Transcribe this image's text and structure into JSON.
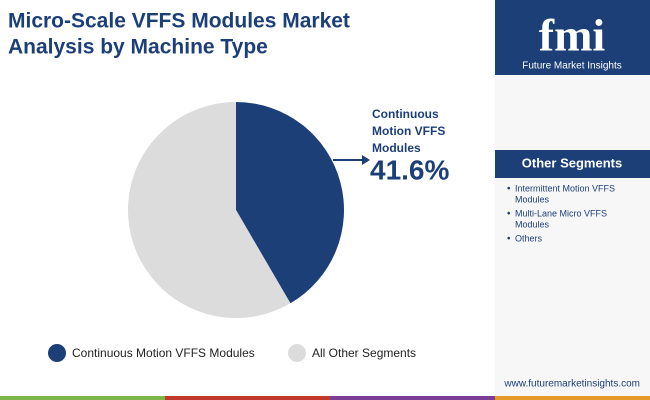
{
  "chart_data": {
    "type": "pie",
    "title": [
      "Micro-Scale VFFS Modules Market",
      "Analysis by Machine Type"
    ],
    "categories": [
      "Continuous Motion VFFS Modules",
      "All Other Segments"
    ],
    "values": [
      41.6,
      58.4
    ],
    "value_labels": [
      "41.6%",
      null
    ],
    "colors": [
      "#1c3f78",
      "#dcdcdc"
    ]
  },
  "brand": {
    "logo": "fmi",
    "name": "Future Market Insights",
    "website": "www.futuremarketinsights.com"
  },
  "sidebar": {
    "title": "Other Segments",
    "items": [
      [
        "Intermittent Motion VFFS",
        "Modules"
      ],
      [
        "Multi-Lane Micro VFFS",
        "Modules"
      ],
      [
        "Others"
      ]
    ]
  }
}
